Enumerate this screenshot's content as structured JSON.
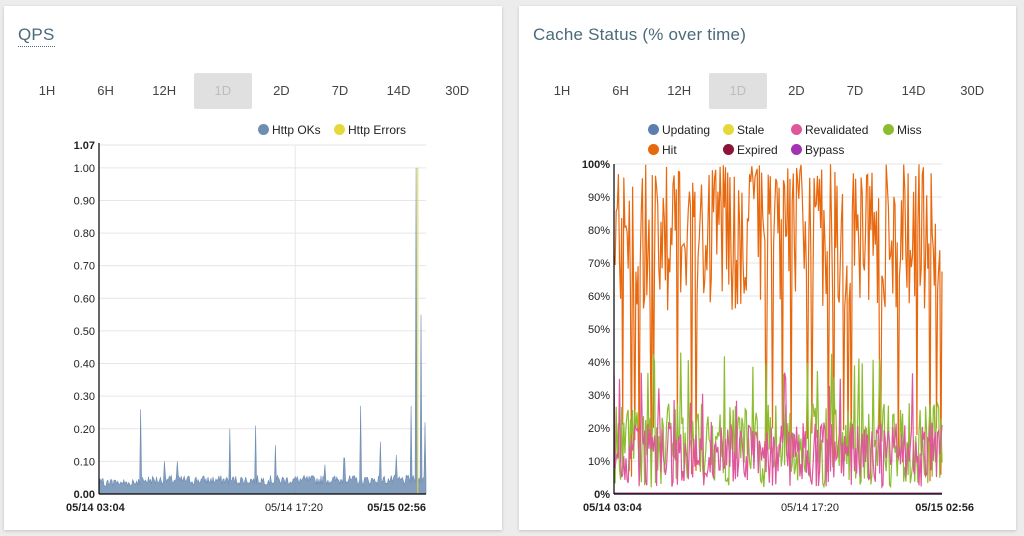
{
  "qps_panel": {
    "title": "QPS",
    "ranges": [
      "1H",
      "6H",
      "12H",
      "1D",
      "2D",
      "7D",
      "14D",
      "30D"
    ],
    "active_range": "1D",
    "legend": [
      {
        "label": "Http OKs",
        "color": "#6e8db3"
      },
      {
        "label": "Http Errors",
        "color": "#e5d93a"
      }
    ]
  },
  "cache_panel": {
    "title": "Cache Status (% over time)",
    "ranges": [
      "1H",
      "6H",
      "12H",
      "1D",
      "2D",
      "7D",
      "14D",
      "30D"
    ],
    "active_range": "1D",
    "legend": [
      {
        "label": "Updating",
        "color": "#5d7fb0"
      },
      {
        "label": "Stale",
        "color": "#e5d93a"
      },
      {
        "label": "Revalidated",
        "color": "#e0569c"
      },
      {
        "label": "Miss",
        "color": "#8cbd2f"
      },
      {
        "label": "Hit",
        "color": "#e8680e"
      },
      {
        "label": "Expired",
        "color": "#8a1538"
      },
      {
        "label": "Bypass",
        "color": "#a433b3"
      }
    ]
  },
  "chart_data": [
    {
      "type": "area",
      "ylim": [
        0,
        1.07
      ],
      "y_ticks": [
        "0.00",
        "0.10",
        "0.20",
        "0.30",
        "0.40",
        "0.50",
        "0.60",
        "0.70",
        "0.80",
        "0.90",
        "1.00",
        "1.07"
      ],
      "x_ticks": [
        "05/14 03:04",
        "05/14 17:20",
        "05/15 02:56"
      ],
      "grid": true,
      "legend_position": "top-right",
      "series": [
        {
          "name": "Http OKs",
          "baseline": 0.05,
          "spikes": [
            {
              "t": 0.128,
              "v": 0.26
            },
            {
              "t": 0.2,
              "v": 0.1
            },
            {
              "t": 0.24,
              "v": 0.1
            },
            {
              "t": 0.4,
              "v": 0.2
            },
            {
              "t": 0.48,
              "v": 0.21
            },
            {
              "t": 0.54,
              "v": 0.15
            },
            {
              "t": 0.69,
              "v": 0.09
            },
            {
              "t": 0.75,
              "v": 0.11
            },
            {
              "t": 0.8,
              "v": 0.27
            },
            {
              "t": 0.86,
              "v": 0.16
            },
            {
              "t": 0.91,
              "v": 0.12
            },
            {
              "t": 0.955,
              "v": 0.27
            },
            {
              "t": 0.97,
              "v": 1.0
            },
            {
              "t": 0.985,
              "v": 0.55
            },
            {
              "t": 0.997,
              "v": 0.22
            }
          ]
        },
        {
          "name": "Http Errors",
          "spikes": [
            {
              "t": 0.975,
              "v": 1.0
            }
          ]
        }
      ]
    },
    {
      "type": "line",
      "ylim": [
        0,
        100
      ],
      "y_ticks": [
        "0%",
        "10%",
        "20%",
        "30%",
        "40%",
        "50%",
        "60%",
        "70%",
        "80%",
        "90%",
        "100%"
      ],
      "x_ticks": [
        "05/14 03:04",
        "05/14 17:20",
        "05/15 02:56"
      ],
      "grid": true,
      "legend_position": "top",
      "series": [
        {
          "name": "Updating",
          "typical_range": [
            0,
            0
          ]
        },
        {
          "name": "Stale",
          "typical_range": [
            0,
            0
          ]
        },
        {
          "name": "Revalidated",
          "typical_range": [
            2,
            30
          ]
        },
        {
          "name": "Miss",
          "typical_range": [
            2,
            42
          ]
        },
        {
          "name": "Hit",
          "typical_range": [
            25,
            100
          ]
        },
        {
          "name": "Expired",
          "typical_range": [
            0,
            0
          ]
        },
        {
          "name": "Bypass",
          "typical_range": [
            0,
            0
          ]
        }
      ]
    }
  ]
}
